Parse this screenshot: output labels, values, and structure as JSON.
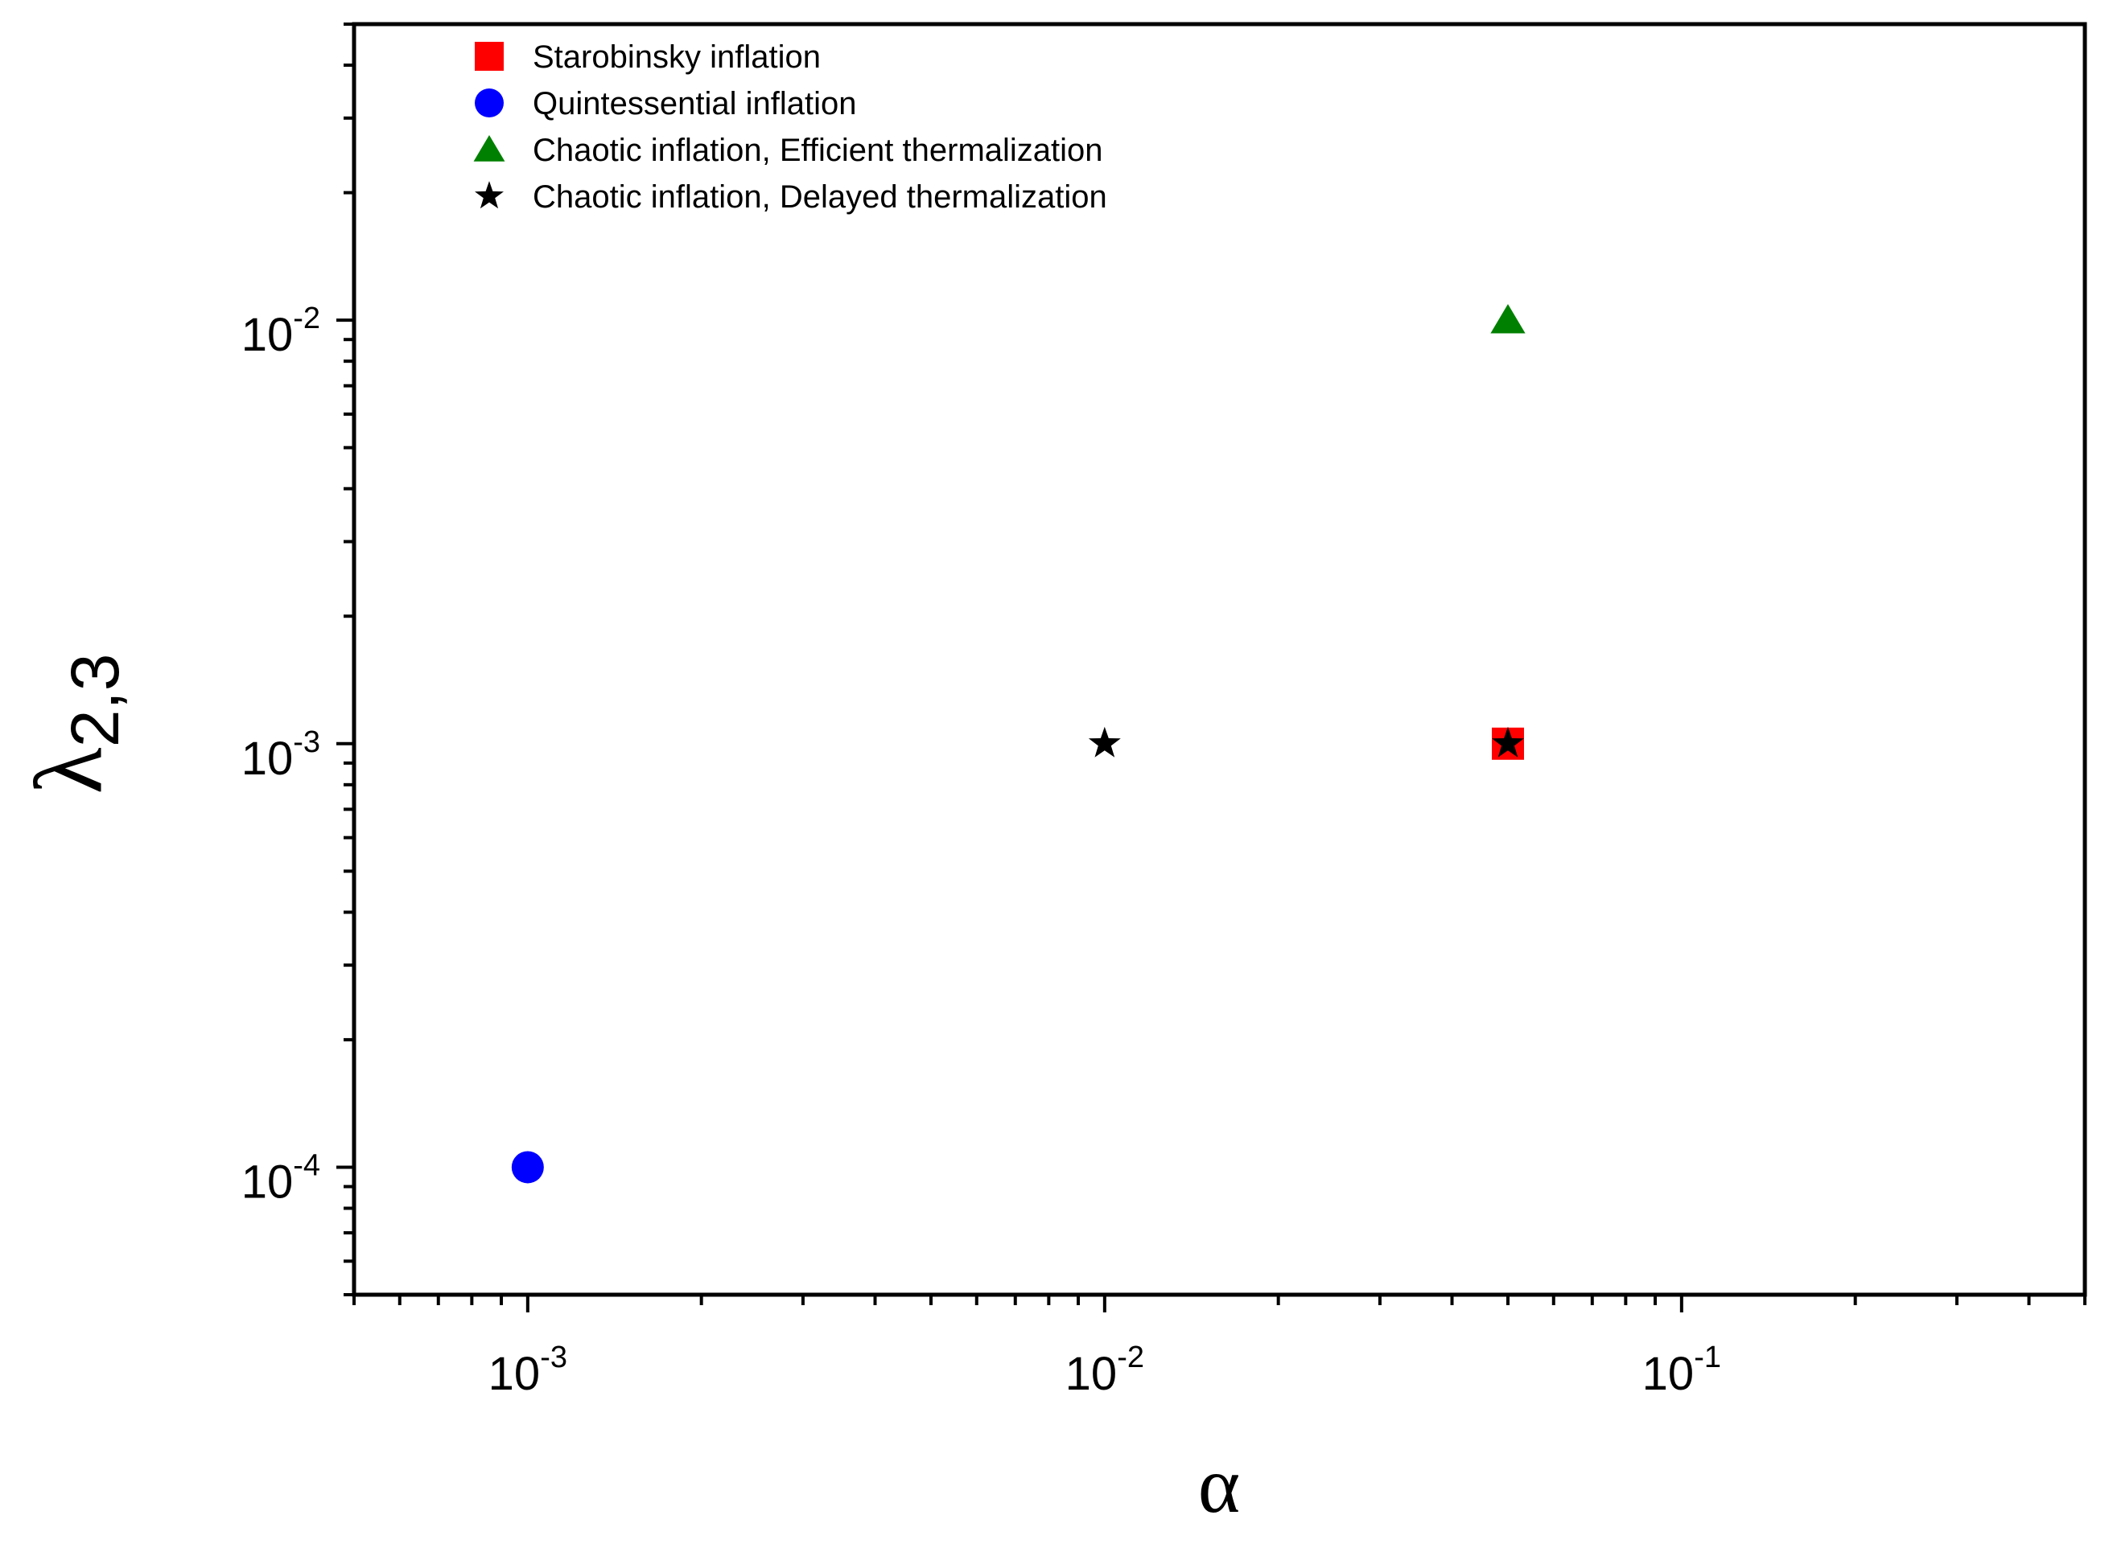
{
  "chart_data": {
    "type": "scatter",
    "xscale": "log",
    "yscale": "log",
    "xlim": [
      0.0005,
      0.5
    ],
    "ylim": [
      5e-05,
      0.05
    ],
    "xlabel": "α",
    "ylabel": {
      "base": "λ",
      "subscript": "2,3"
    },
    "xticks": [
      {
        "value": 0.001,
        "base": "10",
        "exp": "-3"
      },
      {
        "value": 0.01,
        "base": "10",
        "exp": "-2"
      },
      {
        "value": 0.1,
        "base": "10",
        "exp": "-1"
      }
    ],
    "yticks": [
      {
        "value": 0.0001,
        "base": "10",
        "exp": "-4"
      },
      {
        "value": 0.001,
        "base": "10",
        "exp": "-3"
      },
      {
        "value": 0.01,
        "base": "10",
        "exp": "-2"
      }
    ],
    "grid": false,
    "legend_position": "top-left",
    "series": [
      {
        "name": "Starobinsky inflation",
        "marker": "square",
        "color": "#ff0000",
        "points": [
          {
            "x": 0.05,
            "y": 0.001
          }
        ]
      },
      {
        "name": "Quintessential inflation",
        "marker": "circle",
        "color": "#0000ff",
        "points": [
          {
            "x": 0.001,
            "y": 0.0001
          }
        ]
      },
      {
        "name": "Chaotic inflation, Efficient thermalization",
        "marker": "triangle",
        "color": "#008000",
        "points": [
          {
            "x": 0.05,
            "y": 0.01
          }
        ]
      },
      {
        "name": "Chaotic inflation, Delayed thermalization",
        "marker": "star",
        "color": "#000000",
        "points": [
          {
            "x": 0.01,
            "y": 0.001
          },
          {
            "x": 0.05,
            "y": 0.001
          }
        ]
      }
    ]
  }
}
